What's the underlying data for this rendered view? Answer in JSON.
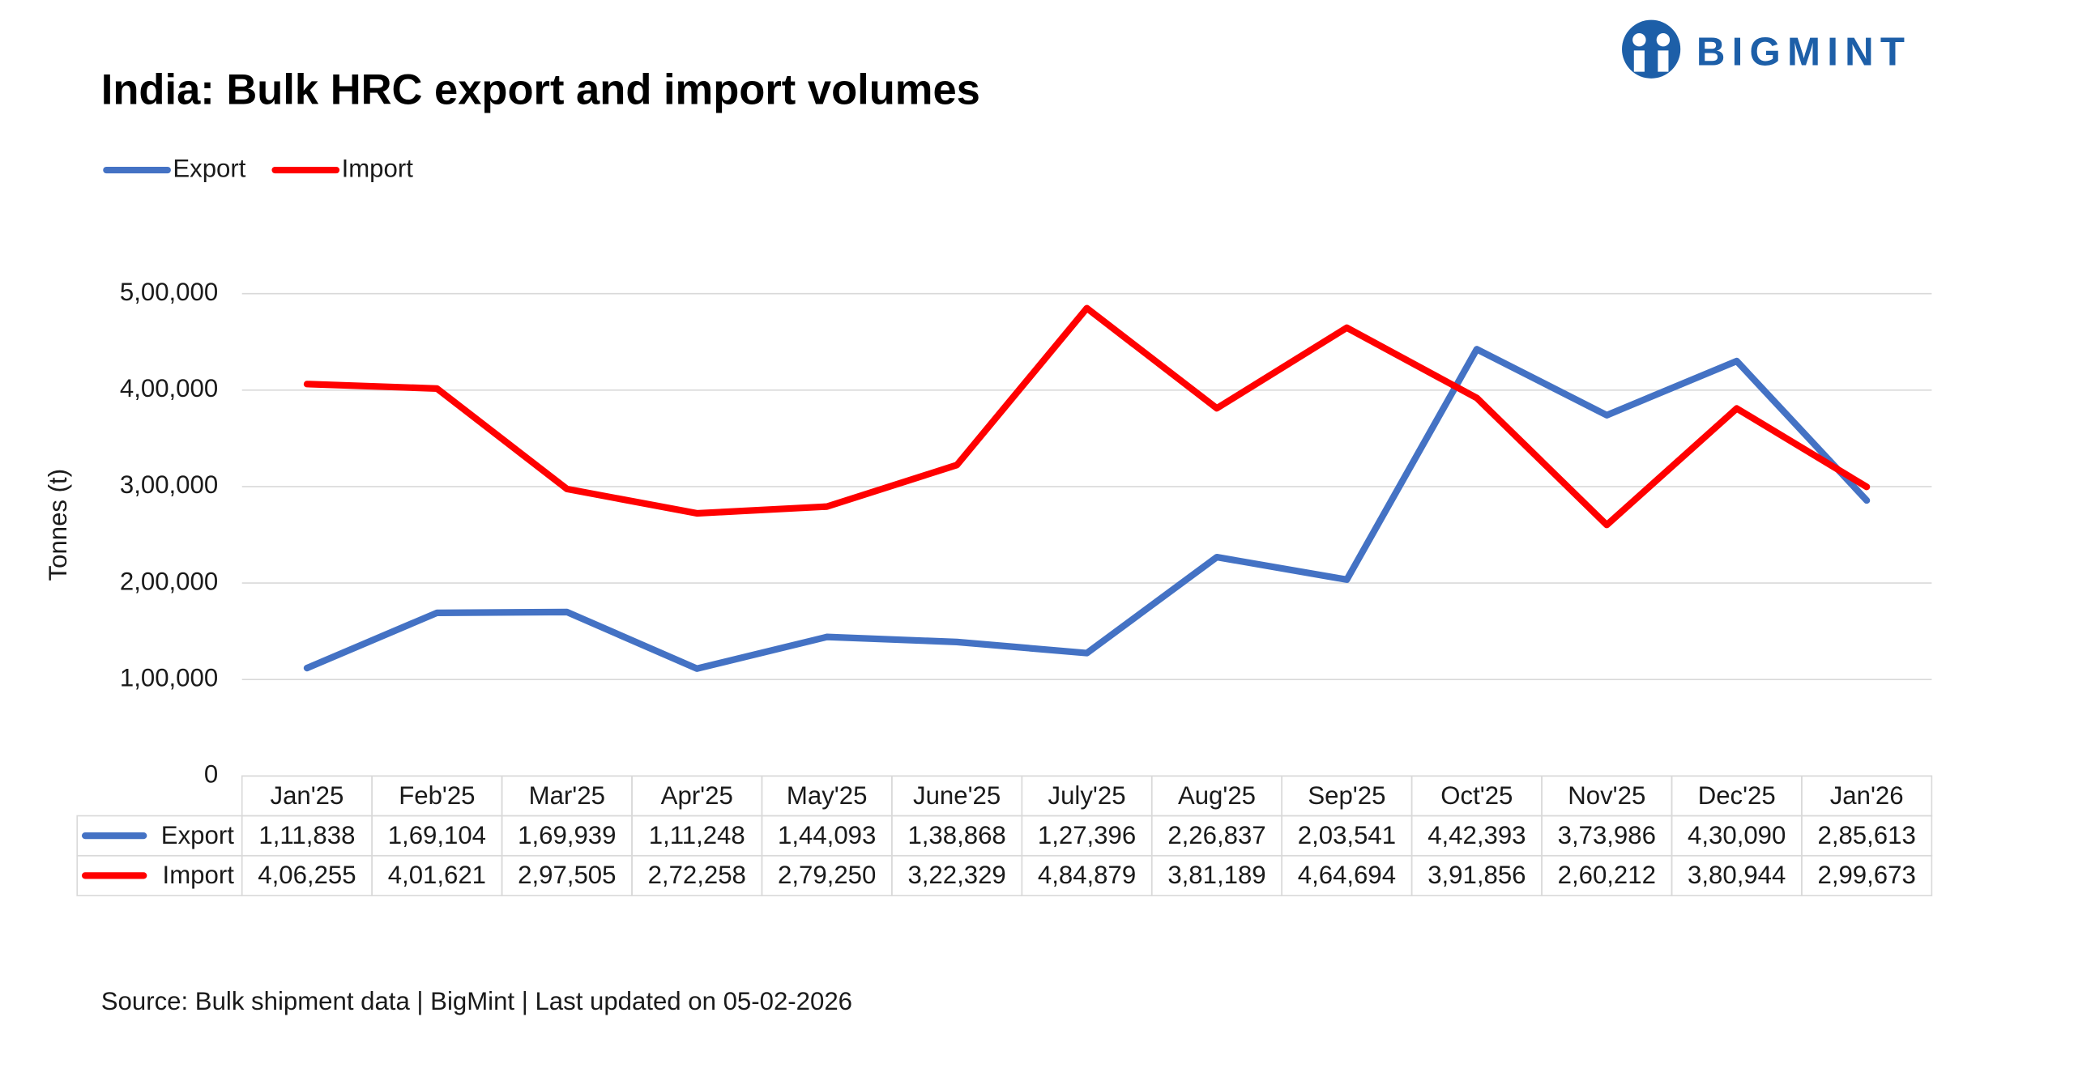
{
  "logo": "BIGMINT",
  "chart_data": {
    "type": "line",
    "title": "India: Bulk HRC export and import volumes",
    "y_label": "Tonnes (t)",
    "source": "Source: Bulk shipment data | BigMint | Last updated on 05-02-2026",
    "categories": [
      "Jan'25",
      "Feb'25",
      "Mar'25",
      "Apr'25",
      "May'25",
      "June'25",
      "July'25",
      "Aug'25",
      "Sep'25",
      "Oct'25",
      "Nov'25",
      "Dec'25",
      "Jan'26"
    ],
    "series": [
      {
        "name": "Export",
        "color": "#4472c4",
        "values": [
          111838,
          169104,
          169939,
          111248,
          144093,
          138868,
          127396,
          226837,
          203541,
          442393,
          373986,
          430090,
          285613
        ],
        "value_labels": [
          "1,11,838",
          "1,69,104",
          "1,69,939",
          "1,11,248",
          "1,44,093",
          "1,38,868",
          "1,27,396",
          "2,26,837",
          "2,03,541",
          "4,42,393",
          "3,73,986",
          "4,30,090",
          "2,85,613"
        ]
      },
      {
        "name": "Import",
        "color": "#ff0000",
        "values": [
          406255,
          401621,
          297505,
          272258,
          279250,
          322329,
          484879,
          381189,
          464694,
          391856,
          260212,
          380944,
          299673
        ],
        "value_labels": [
          "4,06,255",
          "4,01,621",
          "2,97,505",
          "2,72,258",
          "2,79,250",
          "3,22,329",
          "4,84,879",
          "3,81,189",
          "4,64,694",
          "3,91,856",
          "2,60,212",
          "3,80,944",
          "2,99,673"
        ]
      }
    ],
    "ylim": [
      0,
      500000
    ],
    "yticks": [
      0,
      {
        "value": 100000,
        "label": "1,00,000"
      },
      {
        "value": 200000,
        "label": "2,00,000"
      },
      {
        "value": 300000,
        "label": "3,00,000"
      },
      {
        "value": 400000,
        "label": "4,00,000"
      },
      {
        "value": 500000,
        "label": "5,00,000"
      }
    ],
    "grid": true,
    "legend": "top-left"
  }
}
